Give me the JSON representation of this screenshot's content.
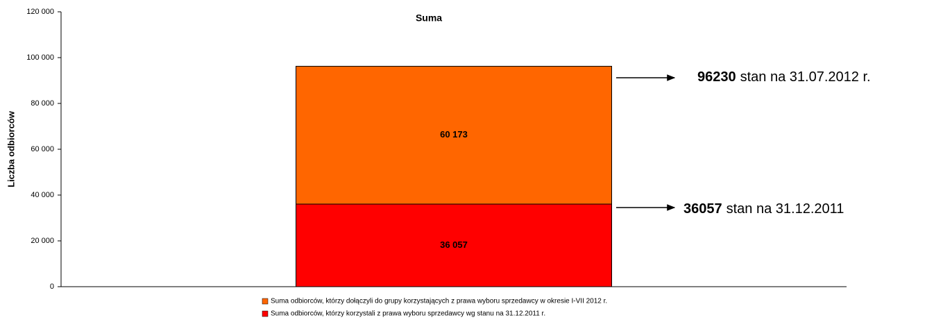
{
  "chart_data": {
    "type": "stacked_bar",
    "title": "Suma",
    "y_label": "Liczba odbiorców",
    "categories": [
      null
    ],
    "series": [
      {
        "name": "Suma odbiorców, którzy korzystali z prawa wyboru sprzedawcy wg stanu na 31.12.2011 r.",
        "color": "#ff0000",
        "values": [
          36057
        ],
        "value_labels": [
          "36 057"
        ]
      },
      {
        "name": "Suma odbiorców, którzy dołączyli do grupy korzystających z  prawa wyboru sprzedawcy w  okresie I-VII  2012 r.",
        "color": "#ff6600",
        "values": [
          60173
        ],
        "value_labels": [
          "60 173"
        ]
      }
    ],
    "ylim": [
      0,
      120000
    ],
    "yticks": [
      0,
      {
        "value": 20000,
        "label": "20 000"
      },
      {
        "value": 40000,
        "label": "40 000"
      },
      {
        "value": 60000,
        "label": "60 000"
      },
      {
        "value": 80000,
        "label": "80 000"
      },
      {
        "value": 100000,
        "label": "100 000"
      },
      {
        "value": 120000,
        "label": "120 000"
      }
    ],
    "grid": false,
    "legend": "bottom",
    "annotations": [
      {
        "bold": "96230",
        "text": "stan na 31.07.2012 r."
      },
      {
        "bold": "36057",
        "text": "stan na 31.12.2011"
      }
    ]
  }
}
